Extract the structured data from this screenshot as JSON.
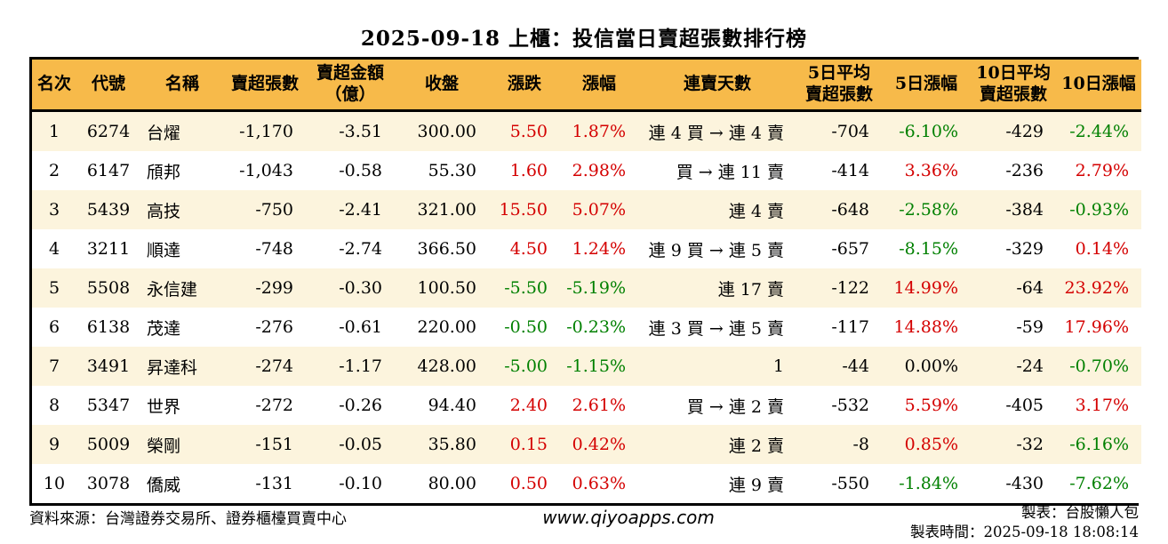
{
  "title": "2025-09-18 上櫃：投信當日賣超張數排行榜",
  "colors": {
    "up": "#d40000",
    "down": "#008000",
    "header_bg": "#f7ba4a",
    "row_alt_bg": "#fcf4dd",
    "border": "#000000"
  },
  "table": {
    "columns": [
      {
        "key": "rank",
        "label": "名次",
        "label2": "",
        "align": "center",
        "width": 50
      },
      {
        "key": "code",
        "label": "代號",
        "label2": "",
        "align": "center",
        "width": 72
      },
      {
        "key": "name",
        "label": "名稱",
        "label2": "",
        "align": "left",
        "width": 94
      },
      {
        "key": "sell-volume",
        "label": "賣超張數",
        "label2": "",
        "align": "right",
        "width": 92
      },
      {
        "key": "sell-amount",
        "label": "賣超金額",
        "label2": "（億）",
        "align": "right",
        "width": 100
      },
      {
        "key": "close",
        "label": "收盤",
        "label2": "",
        "align": "right",
        "width": 106
      },
      {
        "key": "change",
        "label": "漲跌",
        "label2": "",
        "align": "right",
        "width": 80
      },
      {
        "key": "change-pct",
        "label": "漲幅",
        "label2": "",
        "align": "right",
        "width": 88
      },
      {
        "key": "streak",
        "label": "連賣天數",
        "label2": "",
        "align": "right",
        "width": 178
      },
      {
        "key": "avg5",
        "label": "5日平均",
        "label2": "賣超張數",
        "align": "right",
        "width": 96
      },
      {
        "key": "pct5",
        "label": "5日漲幅",
        "label2": "",
        "align": "right",
        "width": 100
      },
      {
        "key": "avg10",
        "label": "10日平均",
        "label2": "賣超張數",
        "align": "right",
        "width": 96
      },
      {
        "key": "pct10",
        "label": "10日漲幅",
        "label2": "",
        "align": "right",
        "width": 96
      }
    ],
    "rows": [
      {
        "cells": [
          {
            "v": "1"
          },
          {
            "v": "6274"
          },
          {
            "v": "台燿"
          },
          {
            "v": "-1,170"
          },
          {
            "v": "-3.51"
          },
          {
            "v": "300.00"
          },
          {
            "v": "5.50",
            "c": "up"
          },
          {
            "v": "1.87%",
            "c": "up"
          },
          {
            "v": "連 4 買 → 連 4 賣"
          },
          {
            "v": "-704"
          },
          {
            "v": "-6.10%",
            "c": "down"
          },
          {
            "v": "-429"
          },
          {
            "v": "-2.44%",
            "c": "down"
          }
        ]
      },
      {
        "cells": [
          {
            "v": "2"
          },
          {
            "v": "6147"
          },
          {
            "v": "頎邦"
          },
          {
            "v": "-1,043"
          },
          {
            "v": "-0.58"
          },
          {
            "v": "55.30"
          },
          {
            "v": "1.60",
            "c": "up"
          },
          {
            "v": "2.98%",
            "c": "up"
          },
          {
            "v": "買 → 連 11 賣"
          },
          {
            "v": "-414"
          },
          {
            "v": "3.36%",
            "c": "up"
          },
          {
            "v": "-236"
          },
          {
            "v": "2.79%",
            "c": "up"
          }
        ]
      },
      {
        "cells": [
          {
            "v": "3"
          },
          {
            "v": "5439"
          },
          {
            "v": "高技"
          },
          {
            "v": "-750"
          },
          {
            "v": "-2.41"
          },
          {
            "v": "321.00"
          },
          {
            "v": "15.50",
            "c": "up"
          },
          {
            "v": "5.07%",
            "c": "up"
          },
          {
            "v": "連 4 賣"
          },
          {
            "v": "-648"
          },
          {
            "v": "-2.58%",
            "c": "down"
          },
          {
            "v": "-384"
          },
          {
            "v": "-0.93%",
            "c": "down"
          }
        ]
      },
      {
        "cells": [
          {
            "v": "4"
          },
          {
            "v": "3211"
          },
          {
            "v": "順達"
          },
          {
            "v": "-748"
          },
          {
            "v": "-2.74"
          },
          {
            "v": "366.50"
          },
          {
            "v": "4.50",
            "c": "up"
          },
          {
            "v": "1.24%",
            "c": "up"
          },
          {
            "v": "連 9 買 → 連 5 賣"
          },
          {
            "v": "-657"
          },
          {
            "v": "-8.15%",
            "c": "down"
          },
          {
            "v": "-329"
          },
          {
            "v": "0.14%",
            "c": "up"
          }
        ]
      },
      {
        "cells": [
          {
            "v": "5"
          },
          {
            "v": "5508"
          },
          {
            "v": "永信建"
          },
          {
            "v": "-299"
          },
          {
            "v": "-0.30"
          },
          {
            "v": "100.50"
          },
          {
            "v": "-5.50",
            "c": "down"
          },
          {
            "v": "-5.19%",
            "c": "down"
          },
          {
            "v": "連 17 賣"
          },
          {
            "v": "-122"
          },
          {
            "v": "14.99%",
            "c": "up"
          },
          {
            "v": "-64"
          },
          {
            "v": "23.92%",
            "c": "up"
          }
        ]
      },
      {
        "cells": [
          {
            "v": "6"
          },
          {
            "v": "6138"
          },
          {
            "v": "茂達"
          },
          {
            "v": "-276"
          },
          {
            "v": "-0.61"
          },
          {
            "v": "220.00"
          },
          {
            "v": "-0.50",
            "c": "down"
          },
          {
            "v": "-0.23%",
            "c": "down"
          },
          {
            "v": "連 3 買 → 連 5 賣"
          },
          {
            "v": "-117"
          },
          {
            "v": "14.88%",
            "c": "up"
          },
          {
            "v": "-59"
          },
          {
            "v": "17.96%",
            "c": "up"
          }
        ]
      },
      {
        "cells": [
          {
            "v": "7"
          },
          {
            "v": "3491"
          },
          {
            "v": "昇達科"
          },
          {
            "v": "-274"
          },
          {
            "v": "-1.17"
          },
          {
            "v": "428.00"
          },
          {
            "v": "-5.00",
            "c": "down"
          },
          {
            "v": "-1.15%",
            "c": "down"
          },
          {
            "v": "1"
          },
          {
            "v": "-44"
          },
          {
            "v": "0.00%"
          },
          {
            "v": "-24"
          },
          {
            "v": "-0.70%",
            "c": "down"
          }
        ]
      },
      {
        "cells": [
          {
            "v": "8"
          },
          {
            "v": "5347"
          },
          {
            "v": "世界"
          },
          {
            "v": "-272"
          },
          {
            "v": "-0.26"
          },
          {
            "v": "94.40"
          },
          {
            "v": "2.40",
            "c": "up"
          },
          {
            "v": "2.61%",
            "c": "up"
          },
          {
            "v": "買 → 連 2 賣"
          },
          {
            "v": "-532"
          },
          {
            "v": "5.59%",
            "c": "up"
          },
          {
            "v": "-405"
          },
          {
            "v": "3.17%",
            "c": "up"
          }
        ]
      },
      {
        "cells": [
          {
            "v": "9"
          },
          {
            "v": "5009"
          },
          {
            "v": "榮剛"
          },
          {
            "v": "-151"
          },
          {
            "v": "-0.05"
          },
          {
            "v": "35.80"
          },
          {
            "v": "0.15",
            "c": "up"
          },
          {
            "v": "0.42%",
            "c": "up"
          },
          {
            "v": "連 2 賣"
          },
          {
            "v": "-8"
          },
          {
            "v": "0.85%",
            "c": "up"
          },
          {
            "v": "-32"
          },
          {
            "v": "-6.16%",
            "c": "down"
          }
        ]
      },
      {
        "cells": [
          {
            "v": "10"
          },
          {
            "v": "3078"
          },
          {
            "v": "僑威"
          },
          {
            "v": "-131"
          },
          {
            "v": "-0.10"
          },
          {
            "v": "80.00"
          },
          {
            "v": "0.50",
            "c": "up"
          },
          {
            "v": "0.63%",
            "c": "up"
          },
          {
            "v": "連 9 賣"
          },
          {
            "v": "-550"
          },
          {
            "v": "-1.84%",
            "c": "down"
          },
          {
            "v": "-430"
          },
          {
            "v": "-7.62%",
            "c": "down"
          }
        ]
      }
    ]
  },
  "footer": {
    "source": "資料來源：台灣證券交易所、證券櫃檯買賣中心",
    "website": "www.qiyoapps.com",
    "maker": "製表：台股懶人包",
    "made_time": "製表時間：2025-09-18 18:08:14"
  }
}
